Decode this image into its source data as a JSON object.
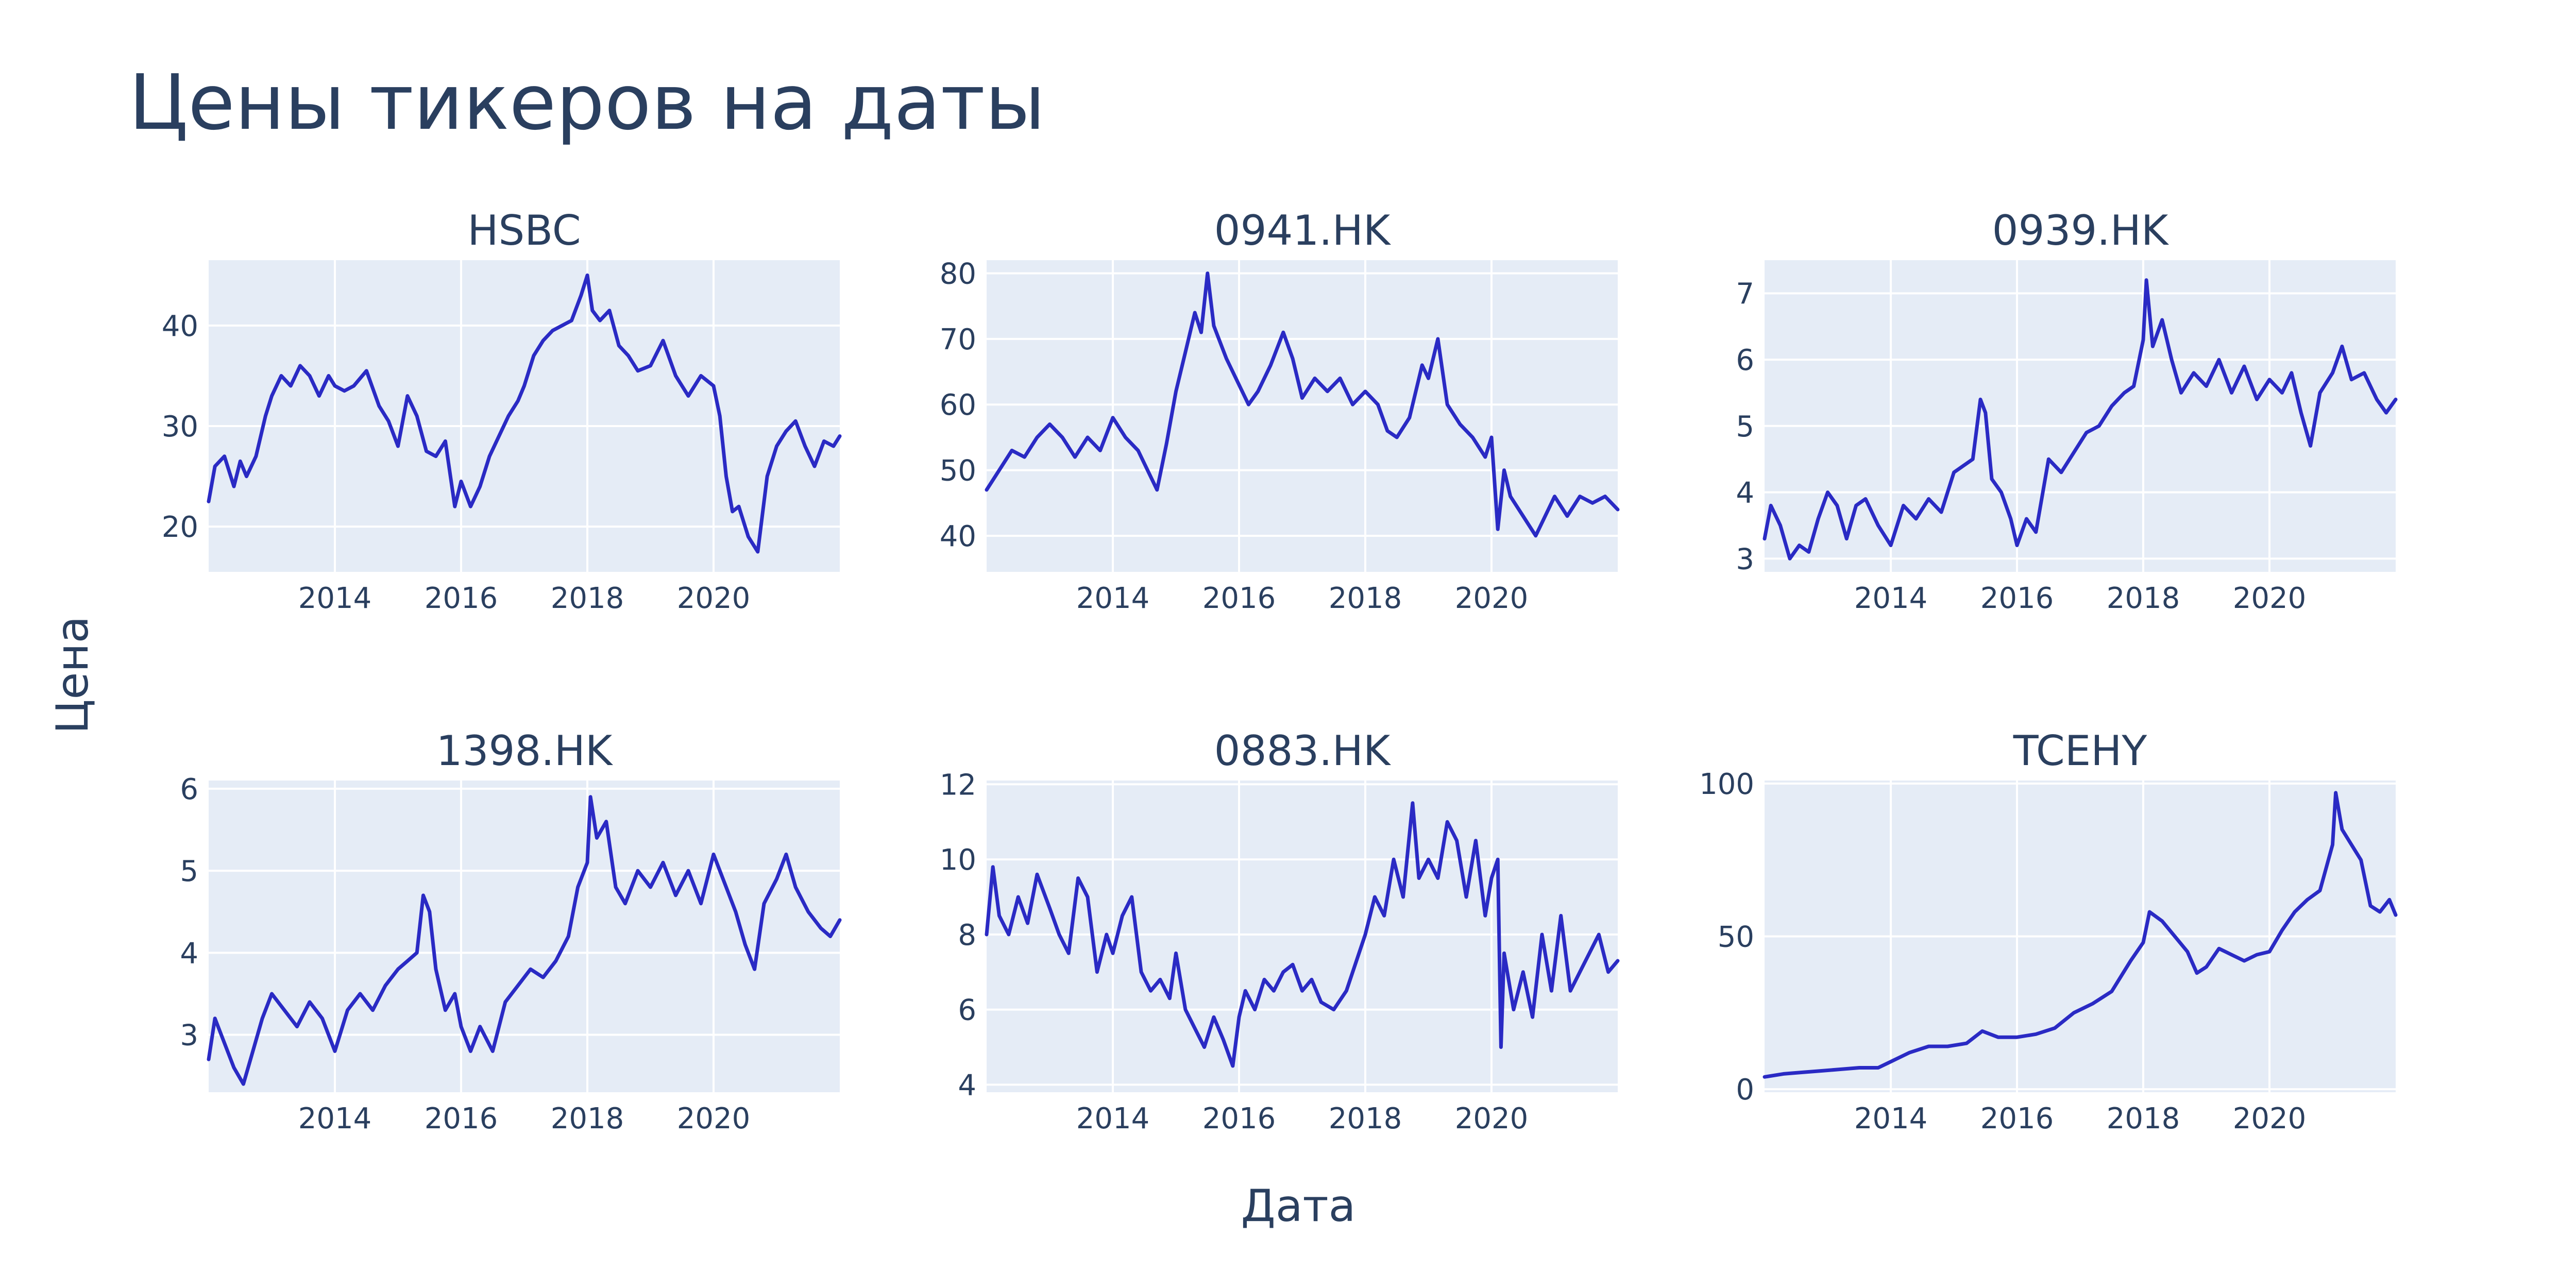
{
  "title": "Цены тикеров на даты",
  "xlabel": "Дата",
  "ylabel": "Цена",
  "colors": {
    "line": "#2a2ac4",
    "plot_bg": "#e5ecf6",
    "text": "#2a3f5f",
    "grid": "#ffffff"
  },
  "chart_data": [
    {
      "type": "line",
      "title": "HSBC",
      "xlim": [
        2012.0,
        2022.0
      ],
      "ylim": [
        15.5,
        46.5
      ],
      "xticks": [
        2014,
        2016,
        2018,
        2020
      ],
      "yticks": [
        20,
        30,
        40
      ],
      "series": [
        {
          "x": [
            2012.0,
            2012.1,
            2012.25,
            2012.4,
            2012.5,
            2012.6,
            2012.75,
            2012.9,
            2013.0,
            2013.15,
            2013.3,
            2013.45,
            2013.6,
            2013.75,
            2013.9,
            2014.0,
            2014.15,
            2014.3,
            2014.5,
            2014.7,
            2014.85,
            2015.0,
            2015.15,
            2015.3,
            2015.45,
            2015.6,
            2015.75,
            2015.9,
            2016.0,
            2016.15,
            2016.3,
            2016.45,
            2016.6,
            2016.75,
            2016.9,
            2017.0,
            2017.15,
            2017.3,
            2017.45,
            2017.6,
            2017.75,
            2017.9,
            2018.0,
            2018.08,
            2018.2,
            2018.35,
            2018.5,
            2018.65,
            2018.8,
            2019.0,
            2019.2,
            2019.4,
            2019.6,
            2019.8,
            2020.0,
            2020.1,
            2020.2,
            2020.3,
            2020.4,
            2020.55,
            2020.7,
            2020.85,
            2021.0,
            2021.15,
            2021.3,
            2021.45,
            2021.6,
            2021.75,
            2021.9,
            2022.0
          ],
          "y": [
            22.5,
            26.0,
            27.0,
            24.0,
            26.5,
            25.0,
            27.0,
            31.0,
            33.0,
            35.0,
            34.0,
            36.0,
            35.0,
            33.0,
            35.0,
            34.0,
            33.5,
            34.0,
            35.5,
            32.0,
            30.5,
            28.0,
            33.0,
            31.0,
            27.5,
            27.0,
            28.5,
            22.0,
            24.5,
            22.0,
            24.0,
            27.0,
            29.0,
            31.0,
            32.5,
            34.0,
            37.0,
            38.5,
            39.5,
            40.0,
            40.5,
            43.0,
            45.0,
            41.5,
            40.5,
            41.5,
            38.0,
            37.0,
            35.5,
            36.0,
            38.5,
            35.0,
            33.0,
            35.0,
            34.0,
            31.0,
            25.0,
            21.5,
            22.0,
            19.0,
            17.5,
            25.0,
            28.0,
            29.5,
            30.5,
            28.0,
            26.0,
            28.5,
            28.0,
            29.0
          ]
        }
      ]
    },
    {
      "type": "line",
      "title": "0941.HK",
      "xlim": [
        2012.0,
        2022.0
      ],
      "ylim": [
        34.5,
        82.0
      ],
      "xticks": [
        2014,
        2016,
        2018,
        2020
      ],
      "yticks": [
        40,
        50,
        60,
        70,
        80
      ],
      "series": [
        {
          "x": [
            2012.0,
            2012.2,
            2012.4,
            2012.6,
            2012.8,
            2013.0,
            2013.2,
            2013.4,
            2013.6,
            2013.8,
            2014.0,
            2014.2,
            2014.4,
            2014.55,
            2014.7,
            2014.85,
            2015.0,
            2015.15,
            2015.3,
            2015.4,
            2015.5,
            2015.6,
            2015.8,
            2016.0,
            2016.15,
            2016.3,
            2016.5,
            2016.7,
            2016.85,
            2017.0,
            2017.2,
            2017.4,
            2017.6,
            2017.8,
            2018.0,
            2018.2,
            2018.35,
            2018.5,
            2018.7,
            2018.9,
            2019.0,
            2019.15,
            2019.3,
            2019.5,
            2019.7,
            2019.9,
            2020.0,
            2020.1,
            2020.2,
            2020.3,
            2020.5,
            2020.7,
            2020.9,
            2021.0,
            2021.2,
            2021.4,
            2021.6,
            2021.8,
            2022.0
          ],
          "y": [
            47.0,
            50.0,
            53.0,
            52.0,
            55.0,
            57.0,
            55.0,
            52.0,
            55.0,
            53.0,
            58.0,
            55.0,
            53.0,
            50.0,
            47.0,
            54.0,
            62.0,
            68.0,
            74.0,
            71.0,
            80.0,
            72.0,
            67.0,
            63.0,
            60.0,
            62.0,
            66.0,
            71.0,
            67.0,
            61.0,
            64.0,
            62.0,
            64.0,
            60.0,
            62.0,
            60.0,
            56.0,
            55.0,
            58.0,
            66.0,
            64.0,
            70.0,
            60.0,
            57.0,
            55.0,
            52.0,
            55.0,
            41.0,
            50.0,
            46.0,
            43.0,
            40.0,
            44.0,
            46.0,
            43.0,
            46.0,
            45.0,
            46.0,
            44.0
          ]
        }
      ]
    },
    {
      "type": "line",
      "title": "0939.HK",
      "xlim": [
        2012.0,
        2022.0
      ],
      "ylim": [
        2.8,
        7.5
      ],
      "xticks": [
        2014,
        2016,
        2018,
        2020
      ],
      "yticks": [
        3,
        4,
        5,
        6,
        7
      ],
      "series": [
        {
          "x": [
            2012.0,
            2012.1,
            2012.25,
            2012.4,
            2012.55,
            2012.7,
            2012.85,
            2013.0,
            2013.15,
            2013.3,
            2013.45,
            2013.6,
            2013.8,
            2014.0,
            2014.2,
            2014.4,
            2014.6,
            2014.8,
            2015.0,
            2015.15,
            2015.3,
            2015.42,
            2015.5,
            2015.6,
            2015.75,
            2015.9,
            2016.0,
            2016.15,
            2016.3,
            2016.5,
            2016.7,
            2016.9,
            2017.1,
            2017.3,
            2017.5,
            2017.7,
            2017.85,
            2018.0,
            2018.05,
            2018.15,
            2018.3,
            2018.45,
            2018.6,
            2018.8,
            2019.0,
            2019.2,
            2019.4,
            2019.6,
            2019.8,
            2020.0,
            2020.2,
            2020.35,
            2020.5,
            2020.65,
            2020.8,
            2021.0,
            2021.15,
            2021.3,
            2021.5,
            2021.7,
            2021.85,
            2022.0
          ],
          "y": [
            3.3,
            3.8,
            3.5,
            3.0,
            3.2,
            3.1,
            3.6,
            4.0,
            3.8,
            3.3,
            3.8,
            3.9,
            3.5,
            3.2,
            3.8,
            3.6,
            3.9,
            3.7,
            4.3,
            4.4,
            4.5,
            5.4,
            5.2,
            4.2,
            4.0,
            3.6,
            3.2,
            3.6,
            3.4,
            4.5,
            4.3,
            4.6,
            4.9,
            5.0,
            5.3,
            5.5,
            5.6,
            6.3,
            7.2,
            6.2,
            6.6,
            6.0,
            5.5,
            5.8,
            5.6,
            6.0,
            5.5,
            5.9,
            5.4,
            5.7,
            5.5,
            5.8,
            5.2,
            4.7,
            5.5,
            5.8,
            6.2,
            5.7,
            5.8,
            5.4,
            5.2,
            5.4
          ]
        }
      ]
    },
    {
      "type": "line",
      "title": "1398.HK",
      "xlim": [
        2012.0,
        2022.0
      ],
      "ylim": [
        2.3,
        6.1
      ],
      "xticks": [
        2014,
        2016,
        2018,
        2020
      ],
      "yticks": [
        3,
        4,
        5,
        6
      ],
      "series": [
        {
          "x": [
            2012.0,
            2012.1,
            2012.25,
            2012.4,
            2012.55,
            2012.7,
            2012.85,
            2013.0,
            2013.2,
            2013.4,
            2013.6,
            2013.8,
            2014.0,
            2014.2,
            2014.4,
            2014.6,
            2014.8,
            2015.0,
            2015.15,
            2015.3,
            2015.4,
            2015.5,
            2015.6,
            2015.75,
            2015.9,
            2016.0,
            2016.15,
            2016.3,
            2016.5,
            2016.7,
            2016.9,
            2017.1,
            2017.3,
            2017.5,
            2017.7,
            2017.85,
            2018.0,
            2018.05,
            2018.15,
            2018.3,
            2018.45,
            2018.6,
            2018.8,
            2019.0,
            2019.2,
            2019.4,
            2019.6,
            2019.8,
            2020.0,
            2020.2,
            2020.35,
            2020.5,
            2020.65,
            2020.8,
            2021.0,
            2021.15,
            2021.3,
            2021.5,
            2021.7,
            2021.85,
            2022.0
          ],
          "y": [
            2.7,
            3.2,
            2.9,
            2.6,
            2.4,
            2.8,
            3.2,
            3.5,
            3.3,
            3.1,
            3.4,
            3.2,
            2.8,
            3.3,
            3.5,
            3.3,
            3.6,
            3.8,
            3.9,
            4.0,
            4.7,
            4.5,
            3.8,
            3.3,
            3.5,
            3.1,
            2.8,
            3.1,
            2.8,
            3.4,
            3.6,
            3.8,
            3.7,
            3.9,
            4.2,
            4.8,
            5.1,
            5.9,
            5.4,
            5.6,
            4.8,
            4.6,
            5.0,
            4.8,
            5.1,
            4.7,
            5.0,
            4.6,
            5.2,
            4.8,
            4.5,
            4.1,
            3.8,
            4.6,
            4.9,
            5.2,
            4.8,
            4.5,
            4.3,
            4.2,
            4.4
          ]
        }
      ]
    },
    {
      "type": "line",
      "title": "0883.HK",
      "xlim": [
        2012.0,
        2022.0
      ],
      "ylim": [
        3.8,
        12.1
      ],
      "xticks": [
        2014,
        2016,
        2018,
        2020
      ],
      "yticks": [
        4,
        6,
        8,
        10,
        12
      ],
      "series": [
        {
          "x": [
            2012.0,
            2012.1,
            2012.2,
            2012.35,
            2012.5,
            2012.65,
            2012.8,
            2013.0,
            2013.15,
            2013.3,
            2013.45,
            2013.6,
            2013.75,
            2013.9,
            2014.0,
            2014.15,
            2014.3,
            2014.45,
            2014.6,
            2014.75,
            2014.9,
            2015.0,
            2015.15,
            2015.3,
            2015.45,
            2015.6,
            2015.75,
            2015.9,
            2016.0,
            2016.1,
            2016.25,
            2016.4,
            2016.55,
            2016.7,
            2016.85,
            2017.0,
            2017.15,
            2017.3,
            2017.5,
            2017.7,
            2017.9,
            2018.0,
            2018.15,
            2018.3,
            2018.45,
            2018.6,
            2018.75,
            2018.85,
            2019.0,
            2019.15,
            2019.3,
            2019.45,
            2019.6,
            2019.75,
            2019.9,
            2020.0,
            2020.1,
            2020.15,
            2020.2,
            2020.35,
            2020.5,
            2020.65,
            2020.8,
            2020.95,
            2021.1,
            2021.25,
            2021.4,
            2021.55,
            2021.7,
            2021.85,
            2022.0
          ],
          "y": [
            8.0,
            9.8,
            8.5,
            8.0,
            9.0,
            8.3,
            9.6,
            8.7,
            8.0,
            7.5,
            9.5,
            9.0,
            7.0,
            8.0,
            7.5,
            8.5,
            9.0,
            7.0,
            6.5,
            6.8,
            6.3,
            7.5,
            6.0,
            5.5,
            5.0,
            5.8,
            5.2,
            4.5,
            5.8,
            6.5,
            6.0,
            6.8,
            6.5,
            7.0,
            7.2,
            6.5,
            6.8,
            6.2,
            6.0,
            6.5,
            7.5,
            8.0,
            9.0,
            8.5,
            10.0,
            9.0,
            11.5,
            9.5,
            10.0,
            9.5,
            11.0,
            10.5,
            9.0,
            10.5,
            8.5,
            9.5,
            10.0,
            5.0,
            7.5,
            6.0,
            7.0,
            5.8,
            8.0,
            6.5,
            8.5,
            6.5,
            7.0,
            7.5,
            8.0,
            7.0,
            7.3
          ]
        }
      ]
    },
    {
      "type": "line",
      "title": "TCEHY",
      "xlim": [
        2012.0,
        2022.0
      ],
      "ylim": [
        -1,
        101
      ],
      "xticks": [
        2014,
        2016,
        2018,
        2020
      ],
      "yticks": [
        0,
        50,
        100
      ],
      "series": [
        {
          "x": [
            2012.0,
            2012.3,
            2012.6,
            2012.9,
            2013.2,
            2013.5,
            2013.8,
            2014.0,
            2014.3,
            2014.6,
            2014.9,
            2015.2,
            2015.45,
            2015.7,
            2016.0,
            2016.3,
            2016.6,
            2016.9,
            2017.2,
            2017.5,
            2017.8,
            2018.0,
            2018.1,
            2018.3,
            2018.5,
            2018.7,
            2018.85,
            2019.0,
            2019.2,
            2019.4,
            2019.6,
            2019.8,
            2020.0,
            2020.2,
            2020.4,
            2020.6,
            2020.8,
            2021.0,
            2021.05,
            2021.15,
            2021.3,
            2021.45,
            2021.6,
            2021.75,
            2021.9,
            2022.0
          ],
          "y": [
            4,
            5,
            5.5,
            6,
            6.5,
            7,
            7,
            9,
            12,
            14,
            14,
            15,
            19,
            17,
            17,
            18,
            20,
            25,
            28,
            32,
            42,
            48,
            58,
            55,
            50,
            45,
            38,
            40,
            46,
            44,
            42,
            44,
            45,
            52,
            58,
            62,
            65,
            80,
            97,
            85,
            80,
            75,
            60,
            58,
            62,
            57
          ]
        }
      ]
    }
  ]
}
